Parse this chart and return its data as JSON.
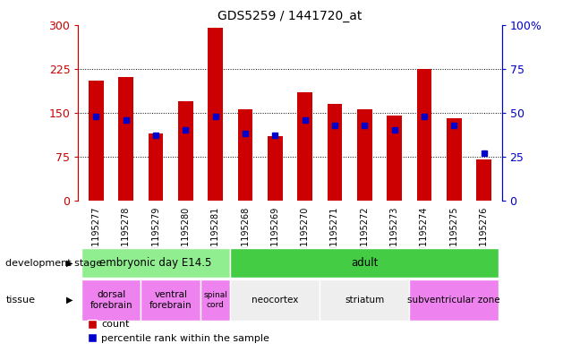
{
  "title": "GDS5259 / 1441720_at",
  "samples": [
    "GSM1195277",
    "GSM1195278",
    "GSM1195279",
    "GSM1195280",
    "GSM1195281",
    "GSM1195268",
    "GSM1195269",
    "GSM1195270",
    "GSM1195271",
    "GSM1195272",
    "GSM1195273",
    "GSM1195274",
    "GSM1195275",
    "GSM1195276"
  ],
  "counts": [
    205,
    210,
    115,
    170,
    295,
    155,
    110,
    185,
    165,
    155,
    145,
    225,
    140,
    70
  ],
  "percentiles": [
    48,
    46,
    37,
    40,
    48,
    38,
    37,
    46,
    43,
    43,
    40,
    48,
    43,
    27
  ],
  "ylim_left": [
    0,
    300
  ],
  "ylim_right": [
    0,
    100
  ],
  "yticks_left": [
    0,
    75,
    150,
    225,
    300
  ],
  "yticks_right": [
    0,
    25,
    50,
    75,
    100
  ],
  "bar_color": "#cc0000",
  "dot_color": "#0000cc",
  "bg_color": "#ffffff",
  "plot_bg": "#ffffff",
  "dev_stage_groups": [
    {
      "label": "embryonic day E14.5",
      "start": 0,
      "end": 5,
      "color": "#90ee90"
    },
    {
      "label": "adult",
      "start": 5,
      "end": 14,
      "color": "#44cc44"
    }
  ],
  "tissue_groups": [
    {
      "label": "dorsal\nforebrain",
      "start": 0,
      "end": 2,
      "color": "#ee82ee"
    },
    {
      "label": "ventral\nforebrain",
      "start": 2,
      "end": 4,
      "color": "#ee82ee"
    },
    {
      "label": "spinal\ncord",
      "start": 4,
      "end": 5,
      "color": "#ee82ee"
    },
    {
      "label": "neocortex",
      "start": 5,
      "end": 8,
      "color": "#eeeeee"
    },
    {
      "label": "striatum",
      "start": 8,
      "end": 11,
      "color": "#eeeeee"
    },
    {
      "label": "subventricular zone",
      "start": 11,
      "end": 14,
      "color": "#ee82ee"
    }
  ],
  "dev_stage_label": "development stage",
  "tissue_label": "tissue",
  "legend_count_label": "count",
  "legend_pct_label": "percentile rank within the sample",
  "left_axis_color": "#cc0000",
  "right_axis_color": "#0000cc"
}
